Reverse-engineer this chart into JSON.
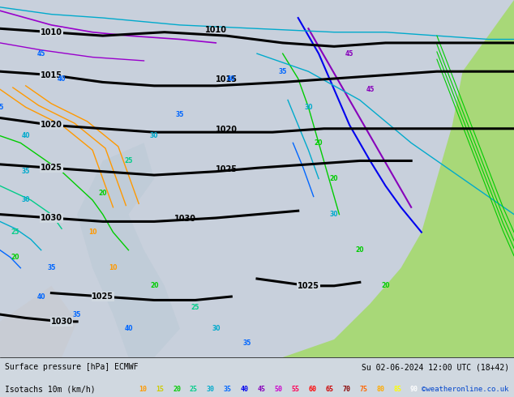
{
  "title_left": "Surface pressure [hPa] ECMWF",
  "title_right": "Su 02-06-2024 12:00 UTC (18+42)",
  "subtitle_left": "Isotachs 10m (km/h)",
  "subtitle_right": "©weatheronline.co.uk",
  "legend_values": [
    10,
    15,
    20,
    25,
    30,
    35,
    40,
    45,
    50,
    55,
    60,
    65,
    70,
    75,
    80,
    85,
    90
  ],
  "legend_colors": [
    "#ffaa00",
    "#ffdd00",
    "#00cc00",
    "#00dd88",
    "#00cccc",
    "#0088ff",
    "#0044ff",
    "#8800ff",
    "#ff00ff",
    "#ff0088",
    "#ff0000",
    "#cc0000",
    "#880000",
    "#ff6600",
    "#ffaa00",
    "#ffff00",
    "#ffffff"
  ],
  "bg_color": "#d0d8e0",
  "map_bg": "#d0d8e0",
  "bottom_bg": "#f0f0f0",
  "fig_width": 6.34,
  "fig_height": 4.9,
  "dpi": 100,
  "bottom_text_color": "#000000",
  "subtitle_right_color": "#0044cc"
}
